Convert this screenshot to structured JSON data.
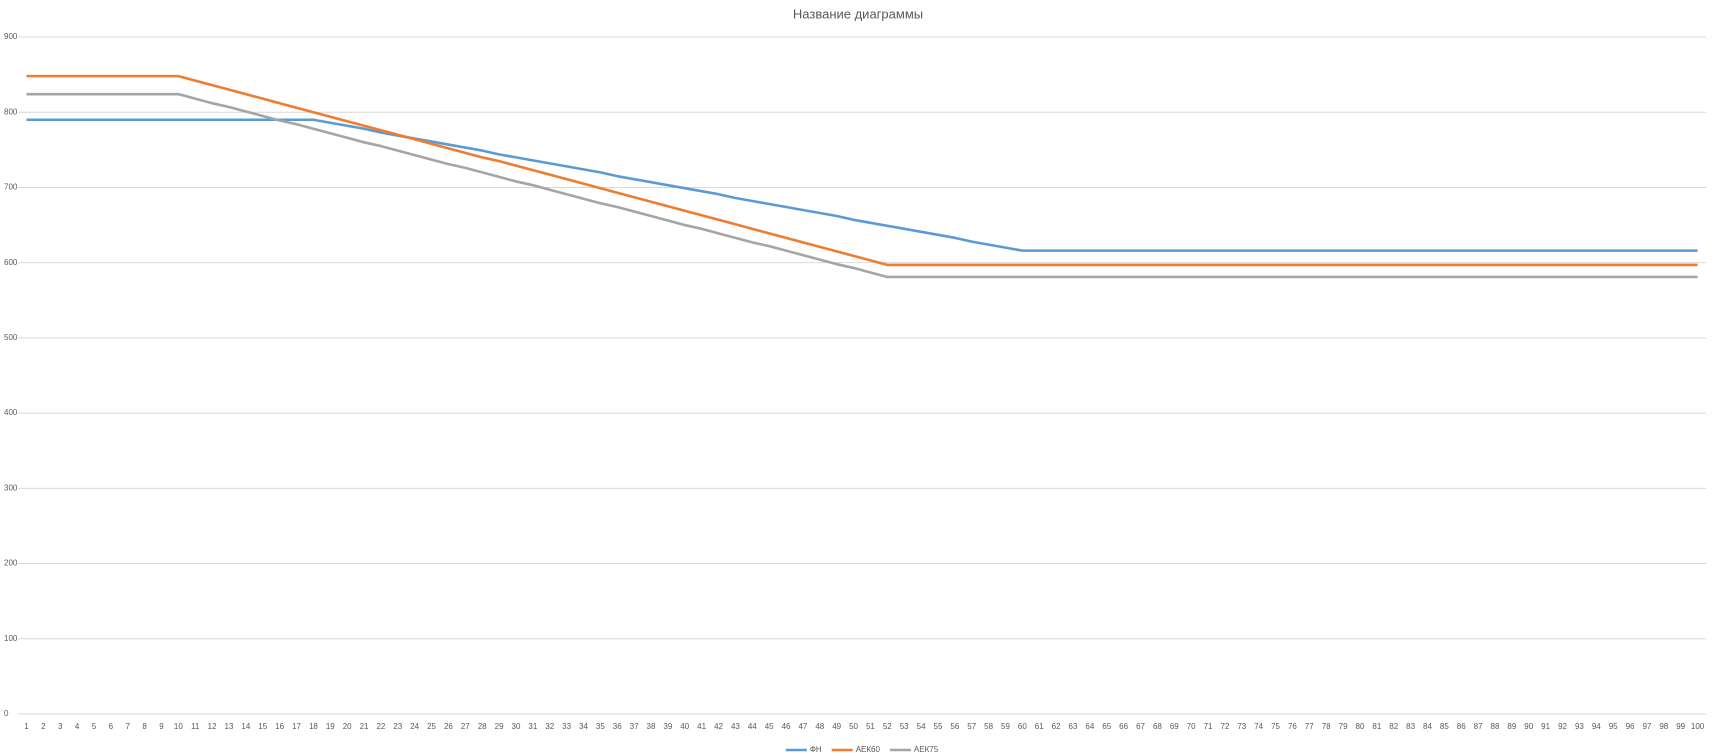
{
  "chart_data": {
    "type": "line",
    "title": "Название диаграммы",
    "categories": [
      "1",
      "2",
      "3",
      "4",
      "5",
      "6",
      "7",
      "8",
      "9",
      "10",
      "11",
      "12",
      "13",
      "14",
      "15",
      "16",
      "17",
      "18",
      "19",
      "20",
      "21",
      "22",
      "23",
      "24",
      "25",
      "26",
      "27",
      "28",
      "29",
      "30",
      "31",
      "32",
      "33",
      "34",
      "35",
      "36",
      "37",
      "38",
      "39",
      "40",
      "41",
      "42",
      "43",
      "44",
      "45",
      "46",
      "47",
      "48",
      "49",
      "50",
      "51",
      "52",
      "53",
      "54",
      "55",
      "56",
      "57",
      "58",
      "59",
      "60",
      "61",
      "62",
      "63",
      "64",
      "65",
      "66",
      "67",
      "68",
      "69",
      "70",
      "71",
      "72",
      "73",
      "74",
      "75",
      "76",
      "77",
      "78",
      "79",
      "80",
      "81",
      "82",
      "83",
      "84",
      "85",
      "86",
      "87",
      "88",
      "89",
      "90",
      "91",
      "92",
      "93",
      "94",
      "95",
      "96",
      "97",
      "98",
      "99",
      "100"
    ],
    "series": [
      {
        "name": "ФН",
        "color": "#5b9bd5",
        "values": [
          790,
          790,
          790,
          790,
          790,
          790,
          790,
          790,
          790,
          790,
          790,
          790,
          790,
          790,
          790,
          790,
          790,
          790,
          786,
          782,
          778,
          773,
          769,
          765,
          761,
          757,
          753,
          749,
          744,
          740,
          736,
          732,
          728,
          724,
          720,
          715,
          711,
          707,
          703,
          699,
          695,
          691,
          686,
          682,
          678,
          674,
          670,
          666,
          662,
          657,
          653,
          649,
          645,
          641,
          637,
          633,
          628,
          624,
          620,
          616,
          616,
          616,
          616,
          616,
          616,
          616,
          616,
          616,
          616,
          616,
          616,
          616,
          616,
          616,
          616,
          616,
          616,
          616,
          616,
          616,
          616,
          616,
          616,
          616,
          616,
          616,
          616,
          616,
          616,
          616,
          616,
          616,
          616,
          616,
          616,
          616,
          616,
          616,
          616,
          616
        ]
      },
      {
        "name": "АЕК60",
        "color": "#ed7d31",
        "values": [
          848,
          848,
          848,
          848,
          848,
          848,
          848,
          848,
          848,
          848,
          842,
          836,
          830,
          824,
          818,
          812,
          806,
          800,
          794,
          788,
          782,
          776,
          770,
          764,
          758,
          752,
          746,
          740,
          735,
          729,
          723,
          717,
          711,
          705,
          699,
          693,
          687,
          681,
          675,
          669,
          663,
          657,
          651,
          645,
          639,
          633,
          627,
          621,
          615,
          609,
          603,
          597,
          597,
          597,
          597,
          597,
          597,
          597,
          597,
          597,
          597,
          597,
          597,
          597,
          597,
          597,
          597,
          597,
          597,
          597,
          597,
          597,
          597,
          597,
          597,
          597,
          597,
          597,
          597,
          597,
          597,
          597,
          597,
          597,
          597,
          597,
          597,
          597,
          597,
          597,
          597,
          597,
          597,
          597,
          597,
          597,
          597,
          597,
          597,
          597
        ]
      },
      {
        "name": "АЕК75",
        "color": "#a5a5a5",
        "values": [
          824,
          824,
          824,
          824,
          824,
          824,
          824,
          824,
          824,
          824,
          818,
          812,
          807,
          801,
          795,
          789,
          784,
          778,
          772,
          766,
          760,
          755,
          749,
          743,
          737,
          731,
          726,
          720,
          714,
          708,
          703,
          697,
          691,
          685,
          679,
          674,
          668,
          662,
          656,
          650,
          645,
          639,
          633,
          627,
          622,
          616,
          610,
          604,
          598,
          593,
          587,
          581,
          581,
          581,
          581,
          581,
          581,
          581,
          581,
          581,
          581,
          581,
          581,
          581,
          581,
          581,
          581,
          581,
          581,
          581,
          581,
          581,
          581,
          581,
          581,
          581,
          581,
          581,
          581,
          581,
          581,
          581,
          581,
          581,
          581,
          581,
          581,
          581,
          581,
          581,
          581,
          581,
          581,
          581,
          581,
          581,
          581,
          581,
          581,
          581
        ]
      }
    ],
    "ylim": [
      0,
      900
    ],
    "yticks": [
      0,
      100,
      200,
      300,
      400,
      500,
      600,
      700,
      800,
      900
    ],
    "grid": true
  }
}
